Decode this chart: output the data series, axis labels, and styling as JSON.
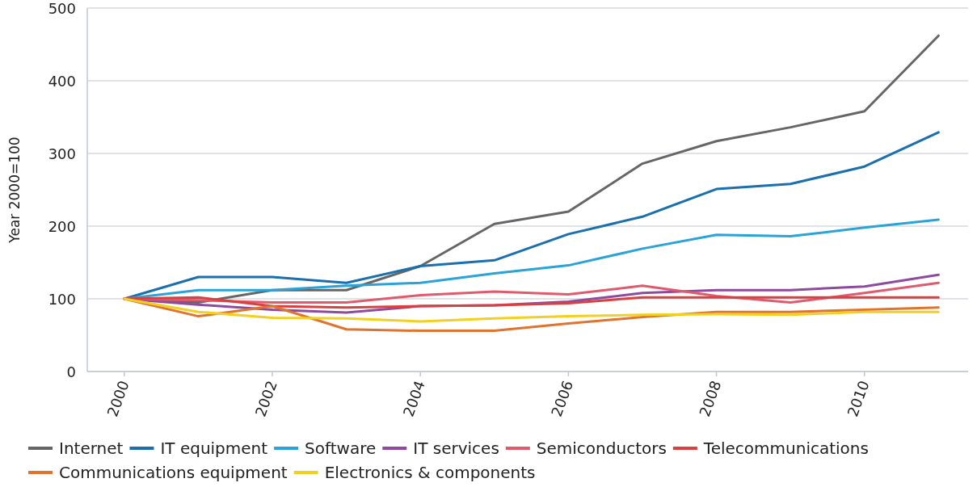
{
  "chart_data": {
    "type": "line",
    "ylabel": "Year 2000=100",
    "x": [
      2000,
      2001,
      2002,
      2003,
      2004,
      2005,
      2006,
      2007,
      2008,
      2009,
      2010,
      2011
    ],
    "xlim": [
      1999.5,
      2011.4
    ],
    "xticks": [
      2000,
      2002,
      2004,
      2006,
      2008,
      2010
    ],
    "ylim": [
      0,
      500
    ],
    "yticks": [
      0,
      100,
      200,
      300,
      400,
      500
    ],
    "grid": "y",
    "legend": "bottom",
    "marker": "none",
    "line_style": "solid",
    "series": [
      {
        "name": "Internet",
        "color": "#666666",
        "values": [
          100,
          95,
          112,
          112,
          145,
          203,
          220,
          286,
          317,
          336,
          358,
          462
        ]
      },
      {
        "name": "IT equipment",
        "color": "#1a6fae",
        "values": [
          100,
          130,
          130,
          122,
          145,
          153,
          189,
          213,
          251,
          258,
          282,
          329
        ]
      },
      {
        "name": "Software",
        "color": "#2aa3d8",
        "values": [
          100,
          112,
          112,
          118,
          122,
          135,
          146,
          169,
          188,
          186,
          198,
          209
        ]
      },
      {
        "name": "IT services",
        "color": "#8e4b9e",
        "values": [
          100,
          92,
          85,
          81,
          90,
          91,
          96,
          108,
          112,
          112,
          117,
          133
        ]
      },
      {
        "name": "Semiconductors",
        "color": "#e05a6e",
        "values": [
          100,
          98,
          95,
          95,
          105,
          110,
          106,
          118,
          104,
          95,
          108,
          122
        ]
      },
      {
        "name": "Telecommunications",
        "color": "#d94040",
        "values": [
          100,
          102,
          90,
          88,
          90,
          91,
          94,
          102,
          102,
          102,
          102,
          102
        ]
      },
      {
        "name": "Communications equipment",
        "color": "#e0732e",
        "values": [
          100,
          76,
          90,
          58,
          56,
          56,
          66,
          75,
          82,
          82,
          85,
          88
        ]
      },
      {
        "name": "Electronics & components",
        "color": "#f2d020",
        "values": [
          100,
          82,
          74,
          73,
          69,
          73,
          76,
          78,
          79,
          78,
          82,
          82
        ]
      }
    ]
  }
}
